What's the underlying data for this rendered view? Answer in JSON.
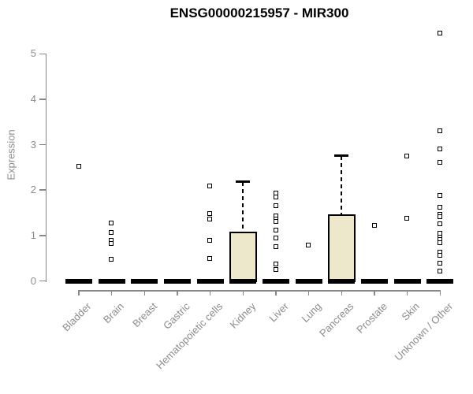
{
  "title": "ENSG00000215957 - MIR300",
  "chart_data": {
    "type": "boxplot",
    "title": "ENSG00000215957 - MIR300",
    "xlabel": "",
    "ylabel": "Expression",
    "ylim": [
      0,
      5.6
    ],
    "yticks": [
      0,
      1,
      2,
      3,
      4,
      5
    ],
    "grid": false,
    "legend": "none",
    "categories": [
      "Bladder",
      "Brain",
      "Breast",
      "Gastric",
      "Hematopoietic cells",
      "Kidney",
      "Liver",
      "Lung",
      "Pancreas",
      "Prostate",
      "Skin",
      "Unknown / Other"
    ],
    "series": [
      {
        "name": "Bladder",
        "q1": 0,
        "median": 0,
        "q3": 0,
        "whisker_low": 0,
        "whisker_high": 0,
        "outliers": [
          2.52
        ]
      },
      {
        "name": "Brain",
        "q1": 0,
        "median": 0,
        "q3": 0,
        "whisker_low": 0,
        "whisker_high": 0,
        "outliers": [
          1.26,
          1.05,
          0.88,
          0.82,
          0.47
        ]
      },
      {
        "name": "Breast",
        "q1": 0,
        "median": 0,
        "q3": 0,
        "whisker_low": 0,
        "whisker_high": 0,
        "outliers": []
      },
      {
        "name": "Gastric",
        "q1": 0,
        "median": 0,
        "q3": 0,
        "whisker_low": 0,
        "whisker_high": 0,
        "outliers": []
      },
      {
        "name": "Hematopoietic cells",
        "q1": 0,
        "median": 0,
        "q3": 0,
        "whisker_low": 0,
        "whisker_high": 0,
        "outliers": [
          2.08,
          1.47,
          1.36,
          0.88,
          0.49
        ]
      },
      {
        "name": "Kidney",
        "q1": 0,
        "median": 0,
        "q3": 1.08,
        "whisker_low": 0,
        "whisker_high": 2.18,
        "outliers": []
      },
      {
        "name": "Liver",
        "q1": 0,
        "median": 0,
        "q3": 0,
        "whisker_low": 0,
        "whisker_high": 0,
        "outliers": [
          1.92,
          1.84,
          1.65,
          1.42,
          1.36,
          1.3,
          1.11,
          0.93,
          0.75,
          0.37,
          0.24
        ]
      },
      {
        "name": "Lung",
        "q1": 0,
        "median": 0,
        "q3": 0,
        "whisker_low": 0,
        "whisker_high": 0,
        "outliers": [
          0.78
        ]
      },
      {
        "name": "Pancreas",
        "q1": 0,
        "median": 0,
        "q3": 1.46,
        "whisker_low": 0,
        "whisker_high": 2.75,
        "outliers": []
      },
      {
        "name": "Prostate",
        "q1": 0,
        "median": 0,
        "q3": 0,
        "whisker_low": 0,
        "whisker_high": 0,
        "outliers": [
          1.22
        ]
      },
      {
        "name": "Skin",
        "q1": 0,
        "median": 0,
        "q3": 0,
        "whisker_low": 0,
        "whisker_high": 0,
        "outliers": [
          2.74,
          1.37
        ]
      },
      {
        "name": "Unknown / Other",
        "q1": 0,
        "median": 0,
        "q3": 0,
        "whisker_low": 0,
        "whisker_high": 0,
        "outliers": [
          5.45,
          3.3,
          2.9,
          2.6,
          1.87,
          1.62,
          1.45,
          1.4,
          1.25,
          1.04,
          0.95,
          0.9,
          0.84,
          0.62,
          0.55,
          0.39,
          0.2
        ]
      }
    ],
    "colors": {
      "box_fill": "#EDE8CB",
      "box_border": "#000000",
      "median": "#000000",
      "whisker": "#000000",
      "outlier": "#000000",
      "axis": "#888888",
      "tick_label": "#8c8c8c",
      "title": "#000000",
      "background": "#ffffff"
    }
  }
}
